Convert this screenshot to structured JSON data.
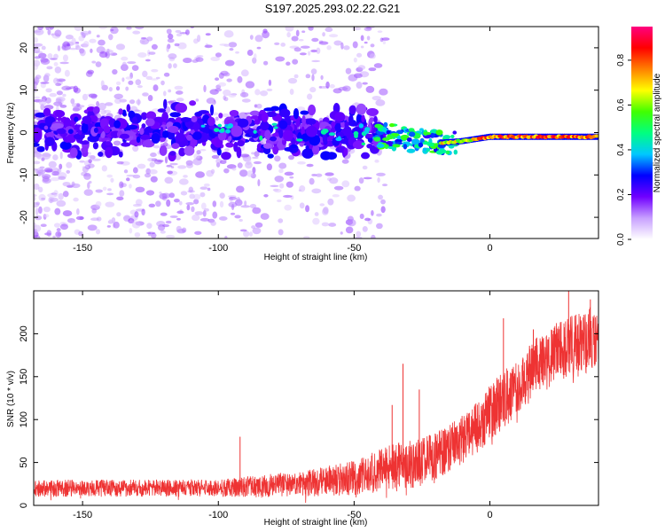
{
  "title": "S197.2025.293.02.22.G21",
  "chart_data": [
    {
      "type": "heatmap",
      "title": "S197.2025.293.02.22.G21",
      "xlabel": "Height of straight line (km)",
      "ylabel": "Frequency (Hz)",
      "xlim": [
        -168,
        40
      ],
      "ylim": [
        -25,
        25
      ],
      "xticks": [
        -150,
        -100,
        -50,
        0
      ],
      "xtick_labels": [
        "-150",
        "-100",
        "-50",
        "0"
      ],
      "yticks": [
        -20,
        -10,
        0,
        10,
        20
      ],
      "ytick_labels": [
        "-20",
        "-10",
        "0",
        "10",
        "20"
      ],
      "signal_centerline": [
        {
          "x": -168,
          "y": 0.5
        },
        {
          "x": -100,
          "y": 0.5
        },
        {
          "x": -50,
          "y": 0.0
        },
        {
          "x": -35,
          "y": -1.0
        },
        {
          "x": -20,
          "y": -2.5
        },
        {
          "x": -10,
          "y": -2.0
        },
        {
          "x": 0,
          "y": -1.0
        },
        {
          "x": 20,
          "y": -1.0
        },
        {
          "x": 40,
          "y": -1.0
        }
      ],
      "colorbar": {
        "label": "Normalized spectral amplitude",
        "range": [
          0,
          0.95
        ],
        "ticks": [
          0.0,
          0.2,
          0.4,
          0.6,
          0.8
        ],
        "tick_labels": [
          "0.0",
          "0.2",
          "0.4",
          "0.6",
          "0.8"
        ],
        "colors": [
          "#ffffff",
          "#c8a0ff",
          "#7000ff",
          "#0000ff",
          "#00c8ff",
          "#00ff80",
          "#40ff00",
          "#ffff00",
          "#ff8000",
          "#ff0000",
          "#ff0080"
        ]
      }
    },
    {
      "type": "line",
      "xlabel": "Height of straight line (km)",
      "ylabel": "SNR (10 * v/v)",
      "xlim": [
        -168,
        40
      ],
      "ylim": [
        0,
        250
      ],
      "xticks": [
        -150,
        -100,
        -50,
        0
      ],
      "xtick_labels": [
        "-150",
        "-100",
        "-50",
        "0"
      ],
      "yticks": [
        0,
        50,
        100,
        150,
        200
      ],
      "ytick_labels": [
        "0",
        "50",
        "100",
        "150",
        "200"
      ],
      "series": [
        {
          "name": "SNR",
          "color": "#ee3333",
          "envelope": [
            {
              "x": -168,
              "mean": 20,
              "spread": 10
            },
            {
              "x": -140,
              "mean": 20,
              "spread": 10
            },
            {
              "x": -100,
              "mean": 20,
              "spread": 10
            },
            {
              "x": -90,
              "mean": 22,
              "spread": 12
            },
            {
              "x": -70,
              "mean": 25,
              "spread": 15
            },
            {
              "x": -50,
              "mean": 32,
              "spread": 20
            },
            {
              "x": -35,
              "mean": 45,
              "spread": 28
            },
            {
              "x": -25,
              "mean": 50,
              "spread": 28
            },
            {
              "x": -15,
              "mean": 65,
              "spread": 28
            },
            {
              "x": -5,
              "mean": 90,
              "spread": 30
            },
            {
              "x": 5,
              "mean": 125,
              "spread": 35
            },
            {
              "x": 15,
              "mean": 155,
              "spread": 35
            },
            {
              "x": 25,
              "mean": 180,
              "spread": 35
            },
            {
              "x": 40,
              "mean": 195,
              "spread": 40
            }
          ],
          "spikes": [
            {
              "x": -92,
              "y": 80
            },
            {
              "x": -36,
              "y": 117
            },
            {
              "x": -32,
              "y": 165
            },
            {
              "x": -26,
              "y": 135
            },
            {
              "x": 5,
              "y": 218
            },
            {
              "x": 16,
              "y": 205
            },
            {
              "x": 29,
              "y": 250
            },
            {
              "x": 37,
              "y": 240
            }
          ]
        }
      ]
    }
  ]
}
